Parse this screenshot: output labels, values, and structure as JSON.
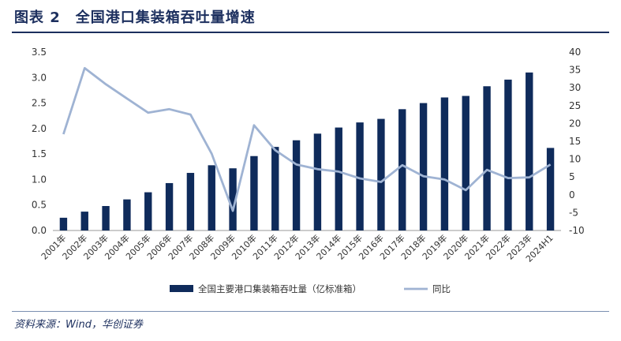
{
  "figure": {
    "label": "图表 2",
    "title": "全国港口集装箱吞吐量增速"
  },
  "source": "资料来源：Wind，华创证券",
  "chart_data": {
    "type": "bar",
    "categories": [
      "2001年",
      "2002年",
      "2003年",
      "2004年",
      "2005年",
      "2006年",
      "2007年",
      "2008年",
      "2009年",
      "2010年",
      "2011年",
      "2012年",
      "2013年",
      "2014年",
      "2015年",
      "2016年",
      "2017年",
      "2018年",
      "2019年",
      "2020年",
      "2021年",
      "2022年",
      "2023年",
      "2024H1"
    ],
    "series": [
      {
        "name": "全国主要港口集装箱吞吐量（亿标准箱）",
        "type": "bar",
        "axis": "left",
        "color": "#0f2b5b",
        "values": [
          0.25,
          0.37,
          0.48,
          0.61,
          0.75,
          0.93,
          1.13,
          1.28,
          1.22,
          1.46,
          1.64,
          1.77,
          1.9,
          2.02,
          2.12,
          2.19,
          2.38,
          2.5,
          2.61,
          2.64,
          2.83,
          2.96,
          3.1,
          1.62
        ]
      },
      {
        "name": "同比",
        "type": "line",
        "axis": "right",
        "color": "#9fb3d3",
        "values": [
          17,
          35.5,
          31,
          27,
          23,
          24,
          22.5,
          11.5,
          -4.5,
          19.5,
          12.5,
          8.5,
          7.2,
          6.5,
          4.6,
          3.6,
          8.3,
          5.2,
          4.3,
          1.3,
          7.0,
          4.7,
          4.9,
          8.5
        ]
      }
    ],
    "ylim": [
      0,
      3.5
    ],
    "yticks": [
      "0.0",
      "0.5",
      "1.0",
      "1.5",
      "2.0",
      "2.5",
      "3.0",
      "3.5"
    ],
    "y2lim": [
      -10,
      40
    ],
    "y2ticks": [
      "-10",
      "-5",
      "0",
      "5",
      "10",
      "15",
      "20",
      "25",
      "30",
      "35",
      "40"
    ],
    "legend_position": "bottom",
    "grid": false
  }
}
